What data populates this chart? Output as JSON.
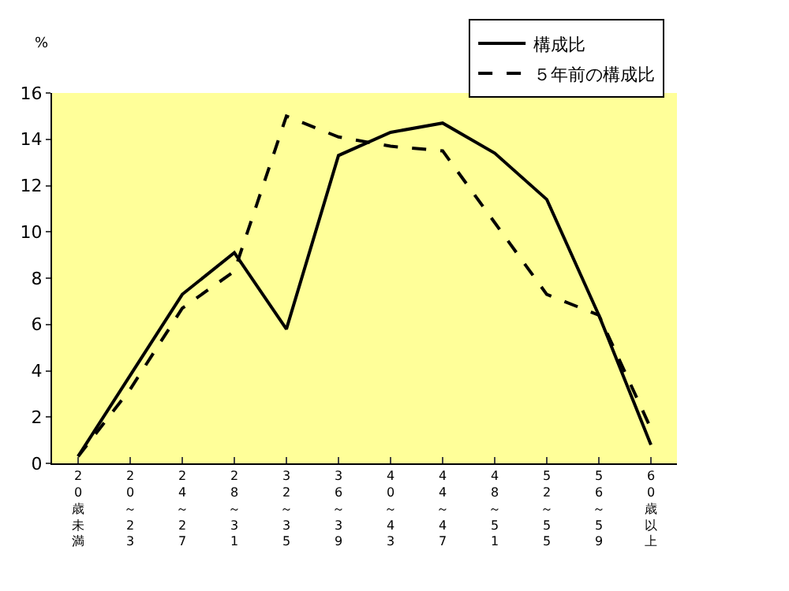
{
  "chart_data": {
    "type": "line",
    "ylabel": "%",
    "categories": [
      "20歳未満",
      "20～23",
      "24～27",
      "28～31",
      "32～35",
      "36～39",
      "40～43",
      "44～47",
      "48～51",
      "52～55",
      "56～59",
      "60歳以上"
    ],
    "series": [
      {
        "name": "構成比",
        "color": "#000000",
        "line_style": "solid",
        "values": [
          0.3,
          3.8,
          7.3,
          9.1,
          5.8,
          13.3,
          14.3,
          14.7,
          13.4,
          11.4,
          6.4,
          0.8
        ]
      },
      {
        "name": "５年前の構成比",
        "color": "#000000",
        "line_style": "dashed",
        "values": [
          0.3,
          3.2,
          6.7,
          8.3,
          15.0,
          14.1,
          13.7,
          13.5,
          10.4,
          7.3,
          6.4,
          1.5
        ]
      }
    ],
    "ylim": [
      0,
      16
    ],
    "yticks": [
      0,
      2,
      4,
      6,
      8,
      10,
      12,
      14,
      16
    ],
    "grid": false,
    "legend": "top right",
    "marker": "none"
  }
}
